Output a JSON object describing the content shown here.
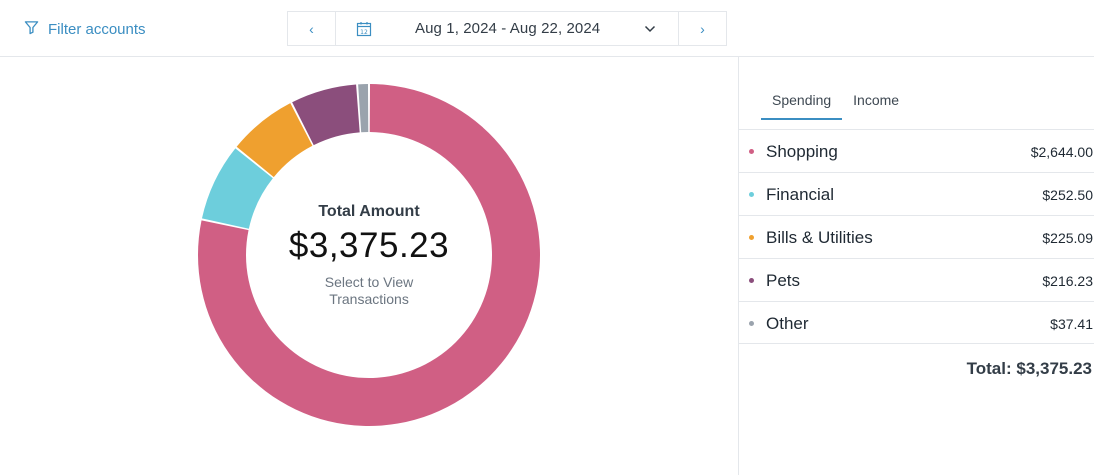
{
  "toolbar": {
    "filter_label": "Filter accounts",
    "prev_icon": "chevron-left-icon",
    "next_icon": "chevron-right-icon",
    "calendar_icon": "calendar-icon",
    "calendar_day": "12",
    "date_range": "Aug 1, 2024 - Aug 22, 2024"
  },
  "donut": {
    "title": "Total Amount",
    "amount": "$3,375.23",
    "subtitle": "Select to View Transactions"
  },
  "tabs": [
    {
      "label": "Spending",
      "active": true
    },
    {
      "label": "Income",
      "active": false
    }
  ],
  "categories": [
    {
      "name": "Shopping",
      "amount": "$2,644.00",
      "value": 2644.0,
      "color": "#d05f84"
    },
    {
      "name": "Financial",
      "amount": "$252.50",
      "value": 252.5,
      "color": "#6dcedc"
    },
    {
      "name": "Bills & Utilities",
      "amount": "$225.09",
      "value": 225.09,
      "color": "#efa02f"
    },
    {
      "name": "Pets",
      "amount": "$216.23",
      "value": 216.23,
      "color": "#8b4e7c"
    },
    {
      "name": "Other",
      "amount": "$37.41",
      "value": 37.41,
      "color": "#9aa3ad"
    }
  ],
  "total_label": "Total: $3,375.23",
  "colors": {
    "accent": "#3b8ec2"
  }
}
